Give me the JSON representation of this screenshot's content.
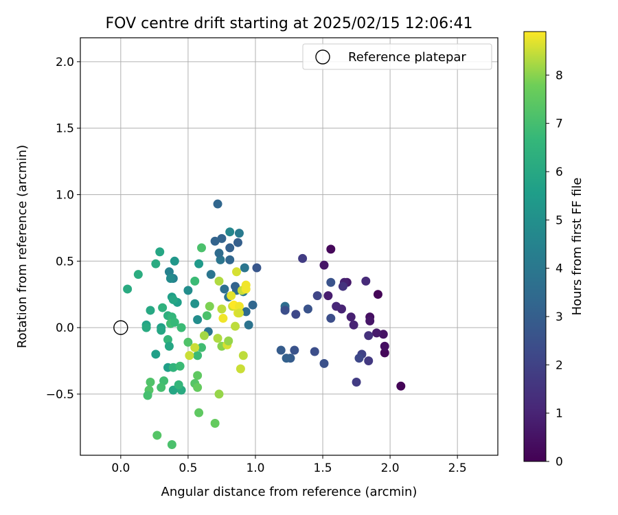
{
  "chart_data": {
    "type": "scatter",
    "title": "FOV centre drift starting at 2025/02/15 12:06:41",
    "xlabel": "Angular distance from reference (arcmin)",
    "ylabel": "Rotation from reference (arcmin)",
    "xlim": [
      -0.3,
      2.8
    ],
    "ylim": [
      -0.96,
      2.18
    ],
    "xticks": [
      0.0,
      0.5,
      1.0,
      1.5,
      2.0,
      2.5
    ],
    "xtick_labels": [
      "0.0",
      "0.5",
      "1.0",
      "1.5",
      "2.0",
      "2.5"
    ],
    "yticks": [
      -0.5,
      0.0,
      0.5,
      1.0,
      1.5,
      2.0
    ],
    "ytick_labels": [
      "−0.5",
      "0.0",
      "0.5",
      "1.0",
      "1.5",
      "2.0"
    ],
    "grid": true,
    "legend": {
      "position": "top-right",
      "entries": [
        "Reference platepar"
      ]
    },
    "reference_point": {
      "x": 0.0,
      "y": 0.0,
      "label": "Reference platepar"
    },
    "colorbar": {
      "label": "Hours from first FF file",
      "colormap": "viridis",
      "range": [
        0,
        8.9
      ],
      "ticks": [
        0,
        1,
        2,
        3,
        4,
        5,
        6,
        7,
        8
      ],
      "tick_labels": [
        "0",
        "1",
        "2",
        "3",
        "4",
        "5",
        "6",
        "7",
        "8"
      ]
    },
    "points": [
      [
        2.08,
        -0.44,
        0.1
      ],
      [
        1.96,
        -0.19,
        0.2
      ],
      [
        1.96,
        -0.14,
        0.4
      ],
      [
        1.95,
        -0.05,
        0.5
      ],
      [
        1.91,
        0.25,
        0.1
      ],
      [
        1.9,
        -0.04,
        0.7
      ],
      [
        1.85,
        0.08,
        0.4
      ],
      [
        1.85,
        0.05,
        0.6
      ],
      [
        1.84,
        -0.06,
        1.4
      ],
      [
        1.84,
        -0.25,
        1.7
      ],
      [
        1.82,
        0.35,
        1.2
      ],
      [
        1.79,
        -0.2,
        2.0
      ],
      [
        1.77,
        -0.23,
        2.2
      ],
      [
        1.75,
        -0.41,
        1.8
      ],
      [
        1.73,
        0.02,
        1.0
      ],
      [
        1.71,
        0.08,
        0.9
      ],
      [
        1.68,
        0.34,
        0.7
      ],
      [
        1.66,
        0.34,
        0.9
      ],
      [
        1.65,
        0.31,
        1.5
      ],
      [
        1.64,
        0.14,
        1.0
      ],
      [
        1.6,
        0.16,
        1.1
      ],
      [
        1.56,
        0.59,
        0.2
      ],
      [
        1.54,
        0.24,
        0.8
      ],
      [
        1.51,
        0.47,
        0.6
      ],
      [
        1.56,
        0.34,
        2.6
      ],
      [
        1.56,
        0.07,
        2.4
      ],
      [
        1.51,
        -0.27,
        2.5
      ],
      [
        1.46,
        0.24,
        2.1
      ],
      [
        1.44,
        -0.18,
        2.4
      ],
      [
        1.39,
        0.14,
        2.6
      ],
      [
        1.35,
        0.52,
        1.8
      ],
      [
        1.3,
        0.1,
        2.2
      ],
      [
        1.29,
        -0.17,
        2.6
      ],
      [
        1.26,
        -0.23,
        2.9
      ],
      [
        1.23,
        -0.23,
        3.1
      ],
      [
        1.22,
        0.16,
        3.6
      ],
      [
        1.22,
        0.14,
        3.4
      ],
      [
        1.22,
        0.13,
        2.4
      ],
      [
        1.19,
        -0.17,
        2.9
      ],
      [
        1.01,
        0.45,
        2.7
      ],
      [
        0.98,
        0.17,
        3.3
      ],
      [
        0.95,
        0.02,
        3.8
      ],
      [
        0.93,
        0.12,
        3.5
      ],
      [
        0.92,
        0.45,
        3.9
      ],
      [
        0.91,
        0.27,
        4.0
      ],
      [
        0.88,
        0.71,
        4.1
      ],
      [
        0.87,
        0.64,
        3.0
      ],
      [
        0.86,
        0.28,
        3.6
      ],
      [
        0.85,
        0.31,
        3.2
      ],
      [
        0.81,
        0.72,
        4.6
      ],
      [
        0.81,
        0.6,
        3.1
      ],
      [
        0.81,
        0.51,
        3.3
      ],
      [
        0.8,
        0.23,
        3.9
      ],
      [
        0.77,
        0.29,
        3.7
      ],
      [
        0.75,
        0.67,
        3.2
      ],
      [
        0.74,
        0.51,
        3.9
      ],
      [
        0.73,
        0.56,
        3.5
      ],
      [
        0.72,
        0.93,
        3.3
      ],
      [
        0.7,
        0.65,
        3.2
      ],
      [
        0.67,
        0.4,
        3.9
      ],
      [
        0.65,
        -0.03,
        3.9
      ],
      [
        0.57,
        0.06,
        4.9
      ],
      [
        0.55,
        0.18,
        5.1
      ],
      [
        0.5,
        0.28,
        4.9
      ],
      [
        0.58,
        0.48,
        5.4
      ],
      [
        0.4,
        0.5,
        5.3
      ],
      [
        0.39,
        0.37,
        4.4
      ],
      [
        0.36,
        0.42,
        4.4
      ],
      [
        0.37,
        0.37,
        4.8
      ],
      [
        0.38,
        0.23,
        5.6
      ],
      [
        0.42,
        0.19,
        5.6
      ],
      [
        0.39,
        0.21,
        5.9
      ],
      [
        0.29,
        0.57,
        5.9
      ],
      [
        0.26,
        0.48,
        6.1
      ],
      [
        0.13,
        0.4,
        6.2
      ],
      [
        0.05,
        0.29,
        6.1
      ],
      [
        0.22,
        0.13,
        6.0
      ],
      [
        0.31,
        0.15,
        6.4
      ],
      [
        0.19,
        0.02,
        5.8
      ],
      [
        0.19,
        0.0,
        6.1
      ],
      [
        0.3,
        0.0,
        5.7
      ],
      [
        0.3,
        -0.02,
        5.9
      ],
      [
        0.35,
        0.09,
        6.3
      ],
      [
        0.38,
        0.08,
        6.6
      ],
      [
        0.37,
        0.03,
        6.9
      ],
      [
        0.4,
        0.04,
        6.7
      ],
      [
        0.35,
        -0.09,
        6.6
      ],
      [
        0.36,
        -0.14,
        5.9
      ],
      [
        0.26,
        -0.2,
        5.6
      ],
      [
        0.35,
        -0.3,
        5.6
      ],
      [
        0.39,
        -0.3,
        6.5
      ],
      [
        0.39,
        -0.47,
        5.9
      ],
      [
        0.45,
        -0.47,
        6.1
      ],
      [
        0.43,
        -0.43,
        6.6
      ],
      [
        0.44,
        -0.29,
        6.8
      ],
      [
        0.45,
        0.0,
        6.8
      ],
      [
        0.32,
        -0.4,
        6.9
      ],
      [
        0.3,
        -0.45,
        7.0
      ],
      [
        0.22,
        -0.41,
        7.2
      ],
      [
        0.21,
        -0.47,
        7.3
      ],
      [
        0.2,
        -0.51,
        7.0
      ],
      [
        0.27,
        -0.81,
        7.3
      ],
      [
        0.38,
        -0.88,
        7.1
      ],
      [
        0.55,
        0.35,
        6.8
      ],
      [
        0.6,
        0.6,
        7.1
      ],
      [
        0.57,
        -0.21,
        6.8
      ],
      [
        0.6,
        -0.15,
        6.9
      ],
      [
        0.5,
        -0.11,
        7.2
      ],
      [
        0.57,
        -0.36,
        7.5
      ],
      [
        0.55,
        -0.42,
        7.3
      ],
      [
        0.57,
        -0.45,
        7.6
      ],
      [
        0.58,
        -0.64,
        7.5
      ],
      [
        0.7,
        -0.72,
        7.6
      ],
      [
        0.64,
        0.09,
        7.1
      ],
      [
        0.62,
        -0.06,
        8.2
      ],
      [
        0.55,
        -0.15,
        8.5
      ],
      [
        0.51,
        -0.21,
        8.5
      ],
      [
        0.66,
        0.16,
        7.9
      ],
      [
        0.73,
        0.35,
        8.3
      ],
      [
        0.72,
        -0.08,
        8.3
      ],
      [
        0.75,
        -0.14,
        8.0
      ],
      [
        0.75,
        0.14,
        8.4
      ],
      [
        0.76,
        0.07,
        8.8
      ],
      [
        0.73,
        -0.5,
        8.1
      ],
      [
        0.79,
        -0.13,
        8.6
      ],
      [
        0.8,
        -0.1,
        8.1
      ],
      [
        0.82,
        0.24,
        8.7
      ],
      [
        0.83,
        0.16,
        8.5
      ],
      [
        0.84,
        0.17,
        8.9
      ],
      [
        0.85,
        0.01,
        8.4
      ],
      [
        0.86,
        0.42,
        8.6
      ],
      [
        0.87,
        0.11,
        8.7
      ],
      [
        0.88,
        0.16,
        8.8
      ],
      [
        0.89,
        -0.31,
        8.5
      ],
      [
        0.9,
        0.28,
        8.5
      ],
      [
        0.91,
        -0.21,
        8.4
      ],
      [
        0.93,
        0.32,
        8.8
      ],
      [
        0.93,
        0.29,
        8.8
      ],
      [
        0.88,
        0.11,
        8.6
      ]
    ]
  }
}
